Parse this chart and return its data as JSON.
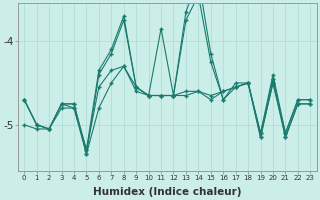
{
  "xlabel": "Humidex (Indice chaleur)",
  "background_color": "#cceee8",
  "grid_color": "#b0ddd8",
  "line_color": "#1a7a6e",
  "x_values": [
    0,
    1,
    2,
    3,
    4,
    5,
    6,
    7,
    8,
    9,
    10,
    11,
    12,
    13,
    14,
    15,
    16,
    17,
    18,
    19,
    20,
    21,
    22,
    23
  ],
  "line1": [
    -4.7,
    -5.0,
    -5.05,
    -4.8,
    -4.8,
    -5.3,
    -4.55,
    -4.35,
    -4.3,
    -4.55,
    -4.65,
    -4.65,
    -4.65,
    -4.6,
    -4.6,
    -4.65,
    -4.6,
    -4.55,
    -4.5,
    -5.1,
    -4.5,
    -5.1,
    -4.7,
    -4.7
  ],
  "line2": [
    -5.0,
    -5.05,
    -5.05,
    -4.75,
    -4.8,
    -5.35,
    -4.8,
    -4.5,
    -4.3,
    -4.6,
    -4.65,
    -4.65,
    -4.65,
    -4.65,
    -4.6,
    -4.7,
    -4.6,
    -4.55,
    -4.5,
    -5.15,
    -4.5,
    -5.15,
    -4.75,
    -4.75
  ],
  "line3": [
    -4.7,
    -5.0,
    -5.05,
    -4.75,
    -4.75,
    -5.35,
    -4.4,
    -4.15,
    -3.75,
    -4.55,
    -4.65,
    -4.65,
    -4.65,
    -3.75,
    -3.45,
    -4.25,
    -4.7,
    -4.55,
    -4.5,
    -5.15,
    -4.45,
    -5.15,
    -4.75,
    -4.75
  ],
  "line4": [
    -4.7,
    -5.0,
    -5.05,
    -4.75,
    -4.75,
    -5.3,
    -4.35,
    -4.1,
    -3.7,
    -4.55,
    -4.65,
    -3.85,
    -4.65,
    -3.65,
    -3.25,
    -4.15,
    -4.7,
    -4.5,
    -4.5,
    -5.1,
    -4.4,
    -5.1,
    -4.7,
    -4.7
  ],
  "ylim": [
    -5.55,
    -3.55
  ],
  "yticks": [
    -5,
    -4
  ],
  "xlim": [
    -0.5,
    23.5
  ]
}
